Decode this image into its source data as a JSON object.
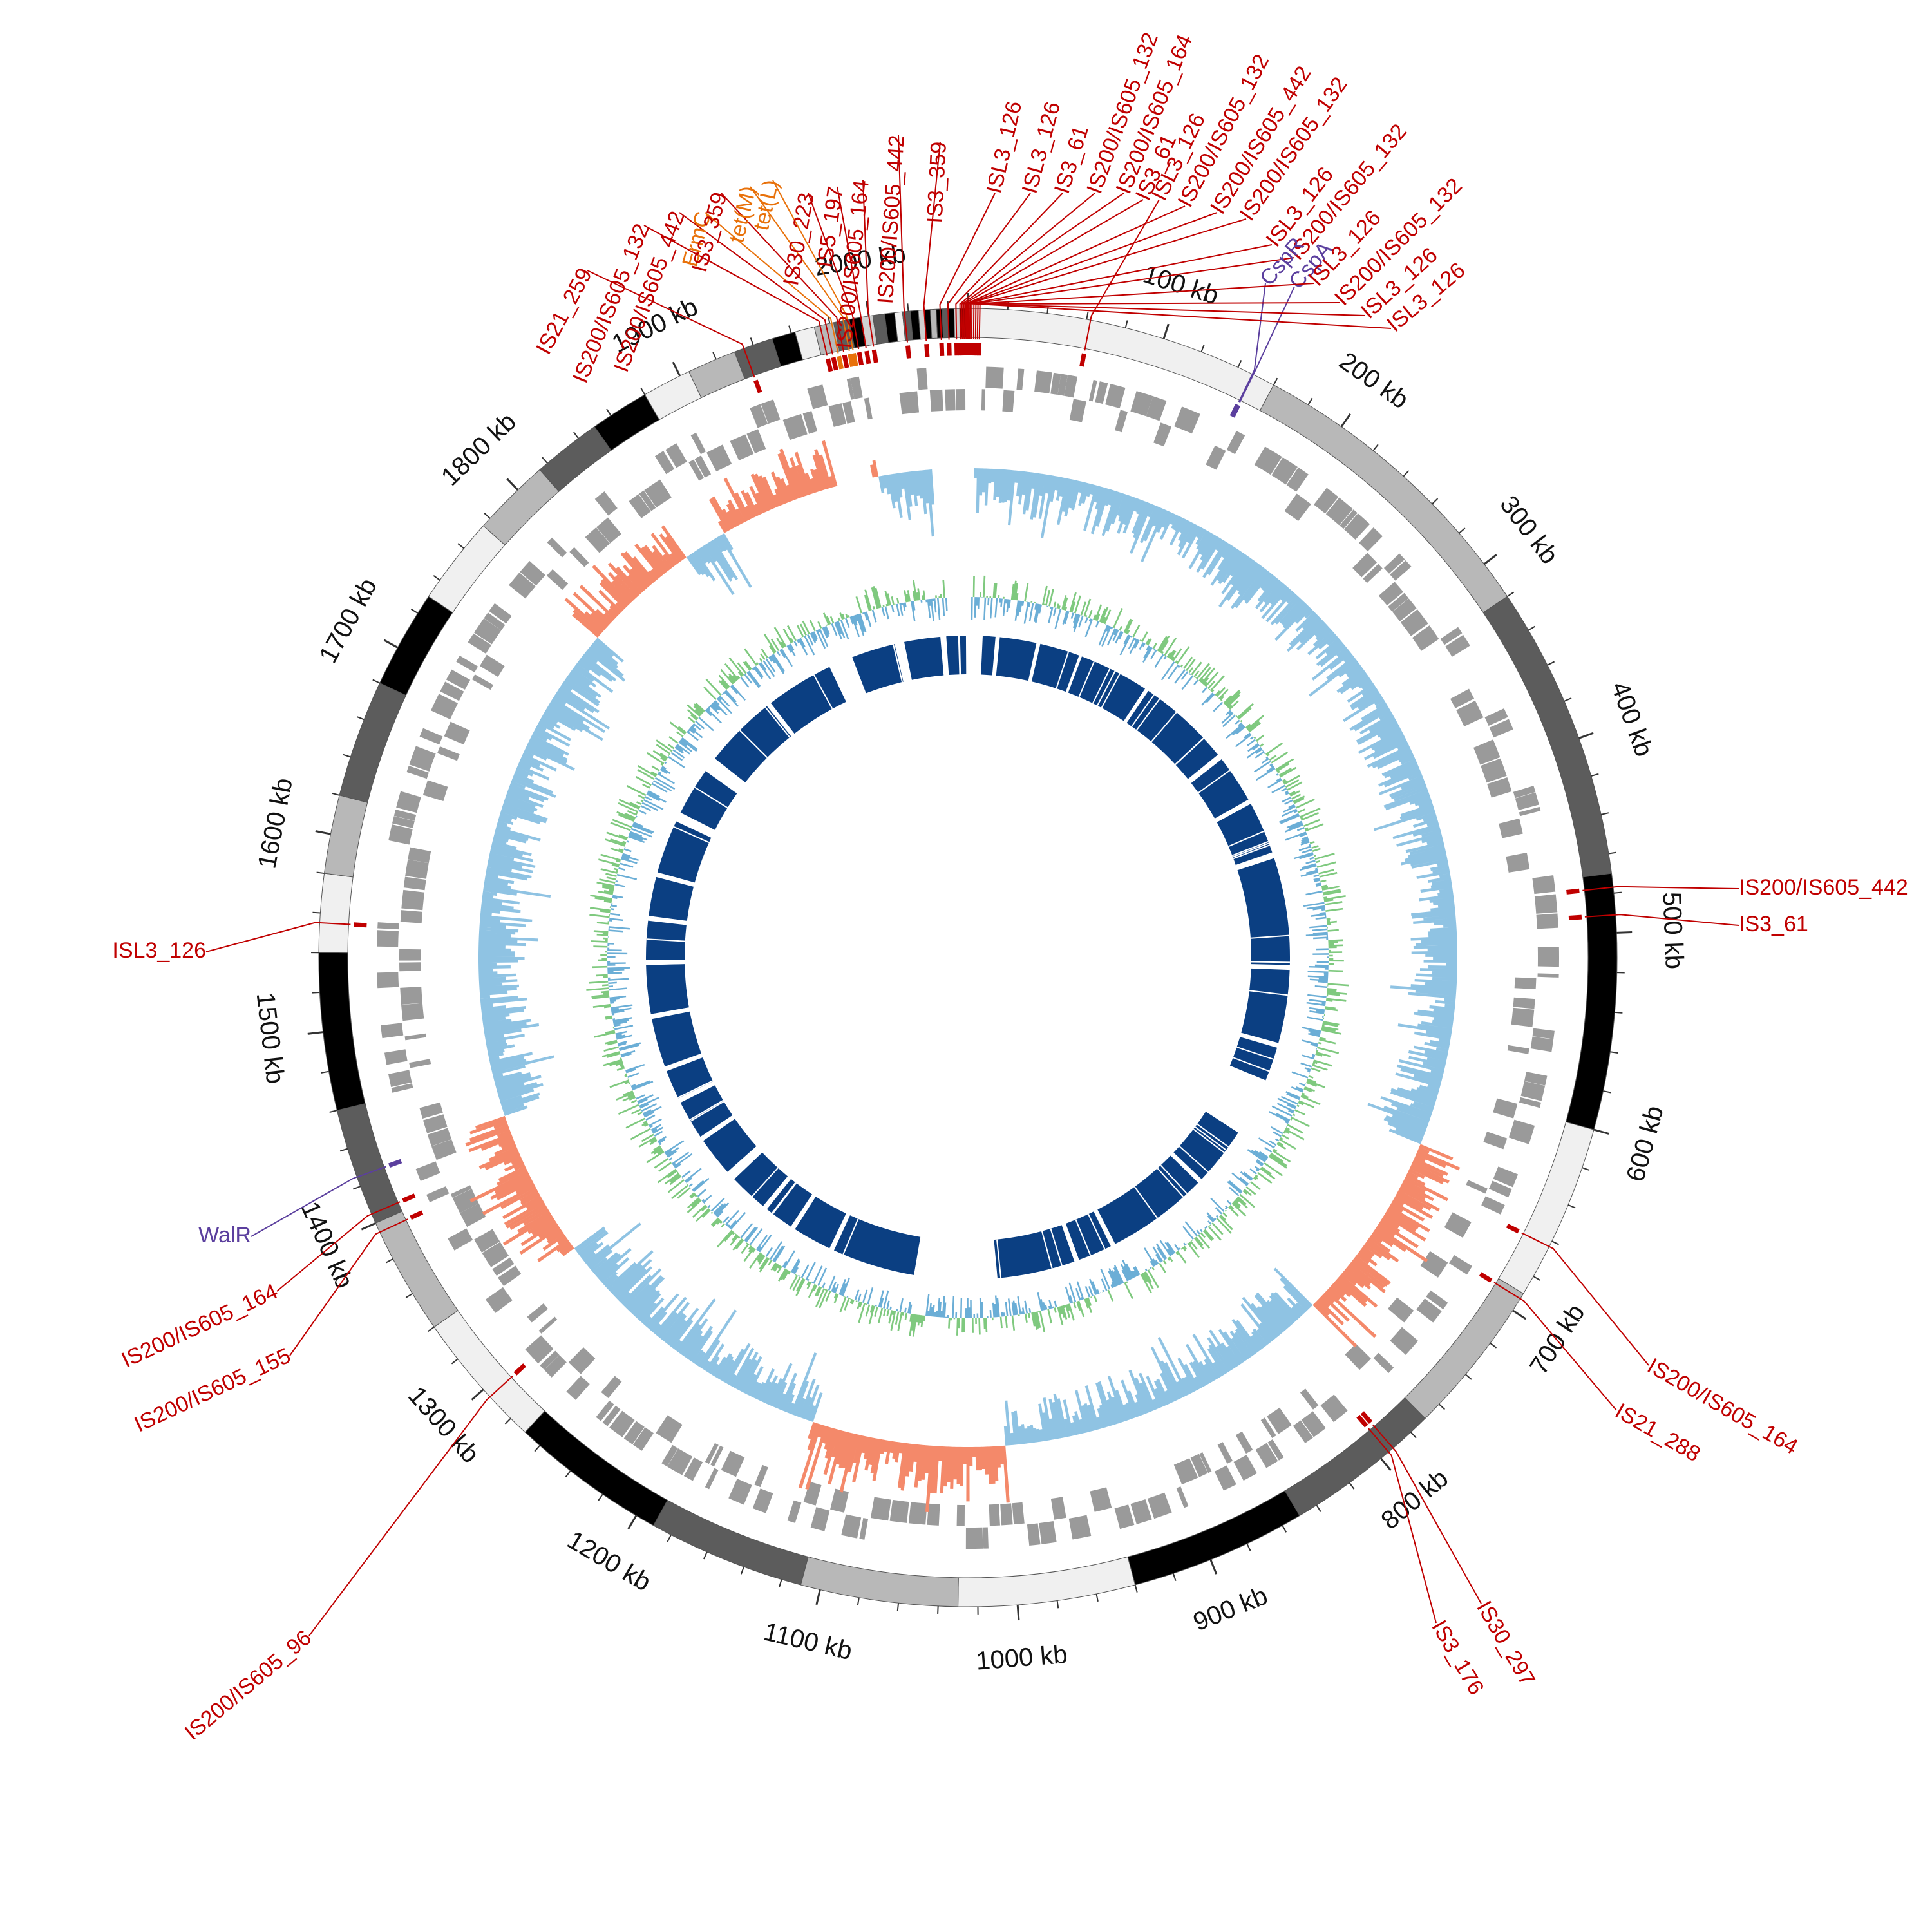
{
  "figure": {
    "genome_length_kb": 2050,
    "tick_interval_kb": 100,
    "tick_suffix": " kb",
    "tick_values": [
      100,
      200,
      300,
      400,
      500,
      600,
      700,
      800,
      900,
      1000,
      1100,
      1200,
      1300,
      1400,
      1500,
      1600,
      1700,
      1800,
      1900,
      2000
    ],
    "colors": {
      "is_element": "#c00000",
      "resistance_gene": "#e8710a",
      "virulence_gene": "#5b3f9e",
      "cds_track": "#9a9a9a",
      "gc_skew_positive": "#8fc3e3",
      "gc_skew_negative": "#f4896a",
      "gc_content_a": "#7fc97f",
      "gc_content_b": "#6baed6",
      "alignment_block": "#0b3f82",
      "contig_shades": [
        "#f0f0f0",
        "#b8b8b8",
        "#5c5c5c",
        "#000000",
        "#d0d0d0"
      ]
    }
  },
  "features": [
    {
      "label": "IS21_259",
      "kb": 1935,
      "kind": "is"
    },
    {
      "label": "IS200/IS605_132",
      "kb": 1975,
      "kind": "is"
    },
    {
      "label": "IS200/IS605_442",
      "kb": 1978,
      "kind": "is"
    },
    {
      "label": "ErmC",
      "kb": 1981,
      "kind": "resistance"
    },
    {
      "label": "IS3_359",
      "kb": 1984,
      "kind": "is"
    },
    {
      "label": "tet(M)",
      "kb": 1987,
      "kind": "resistance"
    },
    {
      "label": "tet(L)",
      "kb": 1989,
      "kind": "resistance"
    },
    {
      "label": "IS30_223",
      "kb": 1992,
      "kind": "is"
    },
    {
      "label": "IS5_197",
      "kb": 1996,
      "kind": "is"
    },
    {
      "label": "IS200/IS605_164",
      "kb": 2000,
      "kind": "is"
    },
    {
      "label": "IS200/IS605_442",
      "kb": 2018,
      "kind": "is"
    },
    {
      "label": "IS3_359",
      "kb": 2028,
      "kind": "is"
    },
    {
      "label": "ISL3_126",
      "kb": 2036,
      "kind": "is"
    },
    {
      "label": "ISL3_126",
      "kb": 2040,
      "kind": "is"
    },
    {
      "label": "IS3_61",
      "kb": 2044,
      "kind": "is"
    },
    {
      "label": "IS200/IS605_132",
      "kb": 2046,
      "kind": "is"
    },
    {
      "label": "IS200/IS605_164",
      "kb": 2047,
      "kind": "is"
    },
    {
      "label": "IS3_61",
      "kb": 2048,
      "kind": "is"
    },
    {
      "label": "ISL3_126",
      "kb": 62,
      "kind": "is"
    },
    {
      "label": "IS200/IS605_132",
      "kb": 2049,
      "kind": "is"
    },
    {
      "label": "IS200/IS605_442",
      "kb": 2049.5,
      "kind": "is"
    },
    {
      "label": "IS200/IS605_132",
      "kb": 2050,
      "kind": "is"
    },
    {
      "label": "ISL3_126",
      "kb": 1,
      "kind": "is"
    },
    {
      "label": "IS200/IS605_132",
      "kb": 2,
      "kind": "is"
    },
    {
      "label": "CspR",
      "kb": 148,
      "kind": "virulence"
    },
    {
      "label": "CspA",
      "kb": 148.5,
      "kind": "virulence"
    },
    {
      "label": "ISL3_126",
      "kb": 3,
      "kind": "is"
    },
    {
      "label": "IS200/IS605_132",
      "kb": 4,
      "kind": "is"
    },
    {
      "label": "ISL3_126",
      "kb": 5,
      "kind": "is"
    },
    {
      "label": "ISL3_126",
      "kb": 6,
      "kind": "is"
    },
    {
      "label": "IS200/IS605_442",
      "kb": 477,
      "kind": "is"
    },
    {
      "label": "IS3_61",
      "kb": 491,
      "kind": "is"
    },
    {
      "label": "IS200/IS605_164",
      "kb": 663,
      "kind": "is"
    },
    {
      "label": "IS21_288",
      "kb": 693,
      "kind": "is"
    },
    {
      "label": "IS30_297",
      "kb": 792,
      "kind": "is"
    },
    {
      "label": "IS3_176",
      "kb": 795,
      "kind": "is"
    },
    {
      "label": "IS200/IS605_96",
      "kb": 1295,
      "kind": "is"
    },
    {
      "label": "IS200/IS605_155",
      "kb": 1395,
      "kind": "is"
    },
    {
      "label": "IS200/IS605_164",
      "kb": 1405,
      "kind": "is"
    },
    {
      "label": "WalR",
      "kb": 1425,
      "kind": "virulence"
    },
    {
      "label": "ISL3_126",
      "kb": 1555,
      "kind": "is"
    }
  ]
}
